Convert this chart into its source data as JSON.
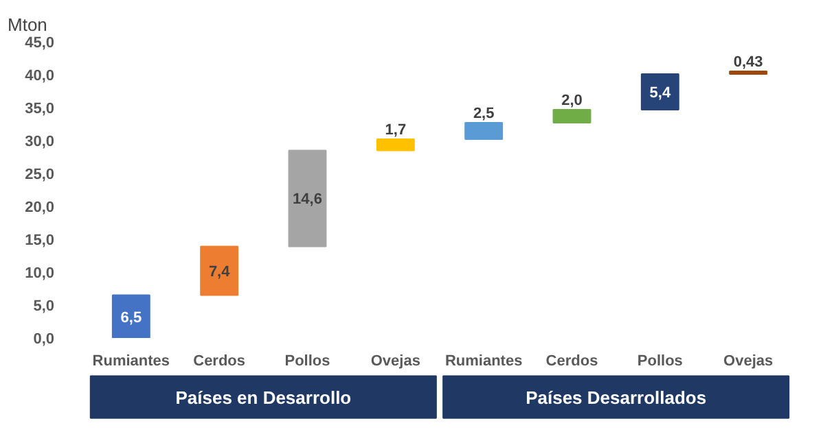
{
  "chart_data": {
    "type": "bar",
    "ylabel": "Mton",
    "categories": [
      "Rumiantes",
      "Cerdos",
      "Pollos",
      "Ovejas",
      "Rumiantes",
      "Cerdos",
      "Pollos",
      "Ovejas"
    ],
    "values": [
      6.5,
      7.4,
      14.6,
      1.7,
      2.5,
      2.0,
      5.4,
      0.43
    ],
    "base": [
      0,
      6.5,
      13.9,
      28.5,
      30.2,
      32.7,
      34.7,
      40.1
    ],
    "colors": [
      "#4472c4",
      "#ed7d31",
      "#a5a5a5",
      "#ffc000",
      "#5b9bd5",
      "#70ad47",
      "#264478",
      "#9e480e"
    ],
    "value_labels": [
      "6,5",
      "7,4",
      "14,6",
      "1,7",
      "2,5",
      "2,0",
      "5,4",
      "0,43"
    ],
    "ylim": [
      0,
      45
    ],
    "yticks": [
      {
        "value": 0,
        "label": "0,0"
      },
      {
        "value": 5,
        "label": "5,0"
      },
      {
        "value": 10,
        "label": "10,0"
      },
      {
        "value": 15,
        "label": "15,0"
      },
      {
        "value": 20,
        "label": "20,0"
      },
      {
        "value": 25,
        "label": "25,0"
      },
      {
        "value": 30,
        "label": "30,0"
      },
      {
        "value": 35,
        "label": "35,0"
      },
      {
        "value": 40,
        "label": "40,0"
      },
      {
        "value": 45,
        "label": "45,0"
      }
    ],
    "annotations": [
      "Países en Desarrollo",
      "Países Desarrollados"
    ],
    "grid": false
  }
}
